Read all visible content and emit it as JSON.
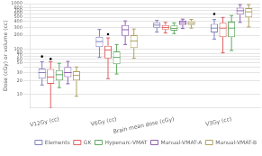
{
  "chart_data": {
    "type": "box",
    "ylabel": "Dose (cGy) or volume (cc)",
    "categories": [
      "V12Gy (cc)",
      "V6Gy (cc)",
      "Brain mean dose (cGy)",
      "V3Gy (cc)"
    ],
    "series": [
      {
        "name": "Elements",
        "color": "#8080c0",
        "values": [
          {
            "whislo": 16,
            "q1": 22,
            "med": 30,
            "q3": 37,
            "whishi": 52,
            "fliers": [
              68
            ]
          },
          {
            "whislo": 65,
            "q1": 110,
            "med": 145,
            "q3": 185,
            "whishi": 270,
            "fliers": []
          },
          {
            "whislo": 235,
            "q1": 295,
            "med": 335,
            "q3": 385,
            "whishi": 425,
            "fliers": []
          },
          {
            "whislo": 165,
            "q1": 230,
            "med": 288,
            "q3": 355,
            "whishi": 445,
            "fliers": [
              590
            ]
          }
        ]
      },
      {
        "name": "GK",
        "color": "#e06060",
        "values": [
          {
            "whislo": 5,
            "q1": 17,
            "med": 24,
            "q3": 36,
            "whishi": 52,
            "fliers": [
              60
            ]
          },
          {
            "whislo": 22,
            "q1": 62,
            "med": 95,
            "q3": 118,
            "whishi": 175,
            "fliers": [
              210
            ]
          },
          {
            "whislo": 225,
            "q1": 268,
            "med": 298,
            "q3": 338,
            "whishi": 385,
            "fliers": []
          },
          {
            "whislo": 82,
            "q1": 182,
            "med": 288,
            "q3": 378,
            "whishi": 495,
            "fliers": []
          }
        ]
      },
      {
        "name": "Hypenarc-VMAT",
        "color": "#60a860",
        "values": [
          {
            "whislo": 14,
            "q1": 20,
            "med": 27,
            "q3": 34,
            "whishi": 48,
            "fliers": []
          },
          {
            "whislo": 28,
            "q1": 46,
            "med": 65,
            "q3": 88,
            "whishi": 125,
            "fliers": []
          },
          {
            "whislo": 218,
            "q1": 252,
            "med": 285,
            "q3": 328,
            "whishi": 375,
            "fliers": []
          },
          {
            "whislo": 92,
            "q1": 182,
            "med": 288,
            "q3": 398,
            "whishi": 545,
            "fliers": []
          }
        ]
      },
      {
        "name": "Manual-VMAT-A",
        "color": "#9060b0",
        "values": [
          {
            "whislo": 17,
            "q1": 24,
            "med": 30,
            "q3": 40,
            "whishi": 53,
            "fliers": []
          },
          {
            "whislo": 125,
            "q1": 195,
            "med": 265,
            "q3": 335,
            "whishi": 415,
            "fliers": []
          },
          {
            "whislo": 282,
            "q1": 338,
            "med": 375,
            "q3": 418,
            "whishi": 455,
            "fliers": []
          },
          {
            "whislo": 385,
            "q1": 568,
            "med": 698,
            "q3": 818,
            "whishi": 948,
            "fliers": []
          }
        ]
      },
      {
        "name": "Manual-VMAT-B",
        "color": "#b0a060",
        "values": [
          {
            "whislo": 9,
            "q1": 20,
            "med": 26,
            "q3": 32,
            "whishi": 40,
            "fliers": []
          },
          {
            "whislo": 62,
            "q1": 105,
            "med": 150,
            "q3": 200,
            "whishi": 275,
            "fliers": []
          },
          {
            "whislo": 288,
            "q1": 338,
            "med": 368,
            "q3": 408,
            "whishi": 448,
            "fliers": []
          },
          {
            "whislo": 305,
            "q1": 498,
            "med": 658,
            "q3": 798,
            "whishi": 948,
            "fliers": []
          }
        ]
      }
    ],
    "log": "y",
    "ylim": [
      5,
      1000
    ],
    "yticks": [
      10,
      20,
      30,
      {
        "value": 40,
        "label": ""
      },
      50,
      60,
      70,
      80,
      100,
      200,
      300,
      400,
      500,
      600,
      700,
      800,
      1000
    ],
    "grid": true,
    "legend": "lower right"
  }
}
